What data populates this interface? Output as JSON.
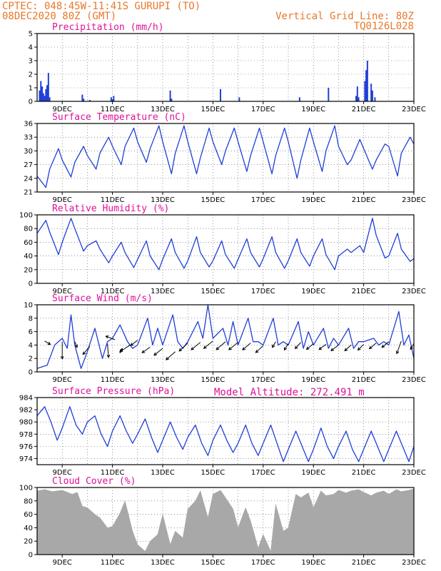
{
  "header": {
    "line1": "CPTEC:   048:45W-11:41S   GURUPI (TO)",
    "line2": "08DEC2020 80Z (GMT)",
    "grid_note": "Vertical Grid Line: 80Z",
    "model_code": "TQ0126L028",
    "altitude_note": "Model Altitude: 272.491 m"
  },
  "colors": {
    "header": "#e8782a",
    "panel_title": "#e0109a",
    "series": "#1f3fd6",
    "cloud": "#a8a8a8",
    "wind_arrow": "#000000",
    "grid": "#555555"
  },
  "chart_data": [
    {
      "type": "bar",
      "title": "Precipitation (mm/h)",
      "ylim": [
        0,
        5
      ],
      "y_ticks": [
        "0",
        "1",
        "2",
        "3",
        "4",
        "5"
      ],
      "x_tick_labels": [
        "9DEC",
        "11DEC",
        "13DEC",
        "15DEC",
        "17DEC",
        "19DEC",
        "21DEC",
        "23DEC"
      ],
      "x_unit": "day_offset_from_08DEC_00Z",
      "series": [
        {
          "x": [
            0.1,
            0.15,
            0.2,
            0.25,
            0.3,
            0.35,
            0.4,
            0.45,
            0.5,
            1.8,
            1.85,
            2.1,
            2.95,
            3.0,
            3.05,
            5.3,
            5.35,
            7.3,
            8.05,
            10.45,
            11.6,
            12.7,
            12.75,
            12.8,
            13.05,
            13.1,
            13.15,
            13.3,
            13.35,
            13.45
          ],
          "values": [
            0.8,
            1.5,
            1.1,
            0.6,
            0.4,
            0.9,
            1.2,
            2.1,
            0.3,
            0.5,
            0.2,
            0.1,
            0.3,
            0.15,
            0.4,
            0.8,
            0.2,
            0.9,
            0.3,
            0.3,
            1.0,
            0.4,
            1.1,
            0.3,
            1.5,
            2.3,
            3.0,
            1.3,
            0.8,
            0.3
          ]
        }
      ]
    },
    {
      "type": "line",
      "title": "Surface Temperature (nC)",
      "ylim": [
        21,
        36
      ],
      "y_ticks": [
        "21",
        "24",
        "27",
        "30",
        "33",
        "36"
      ],
      "x_tick_labels": [
        "9DEC",
        "11DEC",
        "13DEC",
        "15DEC",
        "17DEC",
        "19DEC",
        "21DEC",
        "23DEC"
      ],
      "series": [
        {
          "x": [
            0,
            0.35,
            0.5,
            0.85,
            1.0,
            1.35,
            1.5,
            1.85,
            2.0,
            2.35,
            2.5,
            2.85,
            3.0,
            3.35,
            3.5,
            3.85,
            4.0,
            4.35,
            4.5,
            4.85,
            5.0,
            5.35,
            5.5,
            5.85,
            6.0,
            6.35,
            6.5,
            6.85,
            7.0,
            7.35,
            7.5,
            7.85,
            8.0,
            8.35,
            8.5,
            8.85,
            9.0,
            9.35,
            9.5,
            9.85,
            10.0,
            10.35,
            10.5,
            10.85,
            11.0,
            11.35,
            11.5,
            11.85,
            12.0,
            12.35,
            12.5,
            12.85,
            13.0,
            13.35,
            13.5,
            13.85,
            14.0,
            14.35,
            14.5,
            14.85,
            15.0
          ],
          "values": [
            24.5,
            22,
            26,
            30.5,
            28,
            24.3,
            27.5,
            31,
            29,
            26,
            29.5,
            33,
            31,
            27,
            31,
            35,
            32,
            27.5,
            30.5,
            35.5,
            32,
            25,
            29.5,
            35.5,
            32,
            25,
            28.5,
            35,
            32,
            27,
            30,
            35,
            32,
            25.5,
            29,
            35,
            32,
            25,
            29,
            35,
            32,
            24,
            28,
            35,
            32,
            25.5,
            30,
            35.5,
            31,
            27,
            28,
            32.5,
            30.5,
            26,
            28,
            31.5,
            31,
            24.5,
            29.5,
            33,
            31.5
          ]
        }
      ]
    },
    {
      "type": "line",
      "title": "Relative Humidity (%)",
      "ylim": [
        0,
        100
      ],
      "y_ticks": [
        "0",
        "20",
        "40",
        "60",
        "80",
        "100"
      ],
      "x_tick_labels": [
        "9DEC",
        "11DEC",
        "13DEC",
        "15DEC",
        "17DEC",
        "19DEC",
        "21DEC",
        "23DEC"
      ],
      "series": [
        {
          "x": [
            0,
            0.35,
            0.5,
            0.85,
            1.0,
            1.35,
            1.5,
            1.85,
            2.0,
            2.35,
            2.5,
            2.85,
            3.0,
            3.35,
            3.5,
            3.85,
            4.0,
            4.35,
            4.5,
            4.85,
            5.0,
            5.35,
            5.5,
            5.85,
            6.0,
            6.35,
            6.5,
            6.85,
            7.0,
            7.35,
            7.5,
            7.85,
            8.0,
            8.35,
            8.5,
            8.85,
            9.0,
            9.35,
            9.5,
            9.85,
            10.0,
            10.35,
            10.5,
            10.85,
            11.0,
            11.35,
            11.5,
            11.85,
            12.0,
            12.35,
            12.5,
            12.85,
            13.0,
            13.35,
            13.5,
            13.85,
            14.0,
            14.35,
            14.5,
            14.85,
            15.0
          ],
          "values": [
            73,
            92,
            75,
            42,
            60,
            95,
            80,
            47,
            55,
            62,
            50,
            30,
            40,
            60,
            45,
            23,
            35,
            62,
            40,
            20,
            35,
            65,
            45,
            22,
            33,
            68,
            45,
            24,
            33,
            62,
            42,
            22,
            35,
            65,
            45,
            24,
            36,
            68,
            45,
            22,
            33,
            65,
            45,
            25,
            40,
            65,
            42,
            20,
            40,
            50,
            45,
            55,
            45,
            95,
            70,
            37,
            40,
            73,
            50,
            32,
            36
          ]
        }
      ]
    },
    {
      "type": "line",
      "title": "Surface Wind (m/s)",
      "ylim": [
        0,
        10
      ],
      "y_ticks": [
        "0",
        "2",
        "4",
        "6",
        "8",
        "10"
      ],
      "x_tick_labels": [
        "9DEC",
        "11DEC",
        "13DEC",
        "15DEC",
        "17DEC",
        "19DEC",
        "21DEC",
        "23DEC"
      ],
      "series": [
        {
          "x": [
            0,
            0.4,
            0.7,
            1.0,
            1.2,
            1.35,
            1.5,
            1.75,
            2.0,
            2.3,
            2.6,
            2.8,
            3.0,
            3.3,
            3.6,
            3.8,
            4.0,
            4.4,
            4.6,
            4.8,
            5.0,
            5.4,
            5.6,
            5.8,
            6.0,
            6.4,
            6.6,
            6.8,
            7.0,
            7.4,
            7.6,
            7.8,
            8.0,
            8.4,
            8.6,
            8.8,
            9.0,
            9.4,
            9.6,
            9.8,
            10.0,
            10.4,
            10.6,
            10.8,
            11.0,
            11.4,
            11.6,
            11.8,
            12.0,
            12.4,
            12.6,
            12.8,
            13.0,
            13.4,
            13.6,
            13.8,
            14.0,
            14.4,
            14.6,
            14.8,
            15.0
          ],
          "values": [
            0.5,
            1.0,
            4.0,
            5.0,
            3.5,
            8.5,
            4.0,
            0.5,
            3.0,
            6.5,
            2.0,
            4.5,
            5.0,
            7.0,
            4.5,
            3.5,
            4.0,
            8.0,
            4.0,
            6.5,
            4.0,
            8.5,
            4.5,
            3.5,
            4.5,
            7.5,
            5.0,
            10.0,
            5.0,
            6.5,
            4.0,
            7.5,
            4.0,
            8.0,
            4.5,
            4.5,
            4.0,
            8.0,
            4.0,
            4.5,
            4.0,
            7.5,
            3.5,
            6.0,
            4.0,
            6.5,
            3.5,
            5.0,
            4.0,
            6.5,
            3.5,
            4.5,
            4.5,
            5.0,
            4.0,
            4.5,
            4.0,
            9.0,
            4.0,
            5.5,
            2.0
          ]
        }
      ],
      "wind_arrows": [
        {
          "x": 0.3,
          "y": 4.6,
          "u": 1.0,
          "v": -0.6
        },
        {
          "x": 1.0,
          "y": 4.5,
          "u": 0.0,
          "v": -3.0
        },
        {
          "x": 1.5,
          "y": 4.5,
          "u": 0.4,
          "v": -1.0
        },
        {
          "x": 2.1,
          "y": 3.8,
          "u": -1.2,
          "v": -1.4
        },
        {
          "x": 2.8,
          "y": 4.2,
          "u": 0.2,
          "v": -2.4
        },
        {
          "x": 3.1,
          "y": 4.8,
          "u": -1.6,
          "v": 0.6
        },
        {
          "x": 3.3,
          "y": 2.8,
          "u": 0.4,
          "v": 0.8
        },
        {
          "x": 3.7,
          "y": 4.0,
          "u": -1.8,
          "v": -1.2
        },
        {
          "x": 4.0,
          "y": 4.7,
          "u": -1.2,
          "v": -0.9
        },
        {
          "x": 4.5,
          "y": 3.7,
          "u": -1.4,
          "v": -1.0
        },
        {
          "x": 5.0,
          "y": 3.5,
          "u": -1.5,
          "v": -1.2
        },
        {
          "x": 5.5,
          "y": 3.0,
          "u": -1.6,
          "v": -1.4
        },
        {
          "x": 6.0,
          "y": 4.3,
          "u": -1.5,
          "v": -1.4
        },
        {
          "x": 6.5,
          "y": 4.4,
          "u": -1.6,
          "v": -1.3
        },
        {
          "x": 7.0,
          "y": 4.6,
          "u": -1.6,
          "v": -1.3
        },
        {
          "x": 7.5,
          "y": 4.5,
          "u": -1.6,
          "v": -1.4
        },
        {
          "x": 8.0,
          "y": 4.4,
          "u": -1.6,
          "v": -1.3
        },
        {
          "x": 8.5,
          "y": 4.3,
          "u": -1.4,
          "v": -1.2
        },
        {
          "x": 9.0,
          "y": 3.9,
          "u": -1.3,
          "v": -1.2
        },
        {
          "x": 9.5,
          "y": 4.5,
          "u": -0.6,
          "v": -1.0
        },
        {
          "x": 10.0,
          "y": 4.2,
          "u": -0.7,
          "v": -1.1
        },
        {
          "x": 10.5,
          "y": 4.4,
          "u": -1.0,
          "v": -1.1
        },
        {
          "x": 11.0,
          "y": 4.2,
          "u": -1.2,
          "v": -1.0
        },
        {
          "x": 11.5,
          "y": 4.1,
          "u": -1.2,
          "v": -0.9
        },
        {
          "x": 12.0,
          "y": 4.0,
          "u": -1.3,
          "v": -1.0
        },
        {
          "x": 12.5,
          "y": 4.0,
          "u": -1.1,
          "v": -1.0
        },
        {
          "x": 13.0,
          "y": 4.1,
          "u": -1.0,
          "v": -1.0
        },
        {
          "x": 13.5,
          "y": 4.3,
          "u": -1.2,
          "v": -1.0
        },
        {
          "x": 14.0,
          "y": 4.5,
          "u": -1.2,
          "v": -1.0
        },
        {
          "x": 14.5,
          "y": 4.6,
          "u": -0.8,
          "v": -2.2
        },
        {
          "x": 15.0,
          "y": 4.2,
          "u": -0.6,
          "v": -1.0
        }
      ]
    },
    {
      "type": "line",
      "title": "Surface Pressure (hPa)",
      "ylim": [
        973,
        984
      ],
      "y_ticks": [
        "974",
        "976",
        "978",
        "980",
        "982",
        "984"
      ],
      "x_tick_labels": [
        "9DEC",
        "11DEC",
        "13DEC",
        "15DEC",
        "17DEC",
        "19DEC",
        "21DEC",
        "23DEC"
      ],
      "series": [
        {
          "x": [
            0,
            0.3,
            0.55,
            0.8,
            1.0,
            1.3,
            1.55,
            1.8,
            2.0,
            2.3,
            2.55,
            2.8,
            3.0,
            3.3,
            3.55,
            3.8,
            4.0,
            4.3,
            4.55,
            4.8,
            5.0,
            5.3,
            5.55,
            5.8,
            6.0,
            6.3,
            6.55,
            6.8,
            7.0,
            7.3,
            7.55,
            7.8,
            8.0,
            8.3,
            8.55,
            8.8,
            9.0,
            9.3,
            9.55,
            9.8,
            10.0,
            10.3,
            10.55,
            10.8,
            11.0,
            11.3,
            11.55,
            11.8,
            12.0,
            12.3,
            12.55,
            12.8,
            13.0,
            13.3,
            13.55,
            13.8,
            14.0,
            14.3,
            14.55,
            14.8,
            15.0
          ],
          "values": [
            981,
            982.5,
            980,
            977,
            979,
            982.5,
            979.5,
            978,
            980,
            981,
            978,
            976,
            978.5,
            981,
            978.5,
            976.5,
            978,
            980.5,
            977.5,
            975,
            977,
            980,
            977.5,
            975.5,
            977.5,
            979.5,
            976.5,
            974.5,
            977,
            979.5,
            977,
            975,
            976.5,
            979.5,
            976.5,
            974.5,
            976.5,
            979.5,
            976.5,
            973.5,
            975.5,
            978.5,
            976,
            973.5,
            975.5,
            979,
            976,
            974,
            976,
            978.5,
            975.5,
            973.5,
            975.5,
            978.5,
            976,
            973.5,
            975.5,
            978.5,
            976,
            973.5,
            976
          ]
        }
      ]
    },
    {
      "type": "area",
      "title": "Cloud Cover (%)",
      "ylim": [
        0,
        100
      ],
      "y_ticks": [
        "0",
        "20",
        "40",
        "60",
        "80",
        "100"
      ],
      "x_tick_labels": [
        "9DEC",
        "11DEC",
        "13DEC",
        "15DEC",
        "17DEC",
        "19DEC",
        "21DEC",
        "23DEC"
      ],
      "series": [
        {
          "x": [
            0,
            0.3,
            0.6,
            1.0,
            1.4,
            1.6,
            1.8,
            2.0,
            2.3,
            2.5,
            2.8,
            3.0,
            3.3,
            3.5,
            3.8,
            4.0,
            4.3,
            4.5,
            4.8,
            5.0,
            5.3,
            5.5,
            5.8,
            6.0,
            6.3,
            6.5,
            6.8,
            7.0,
            7.3,
            7.5,
            7.8,
            8.0,
            8.3,
            8.5,
            8.8,
            9.0,
            9.3,
            9.5,
            9.8,
            10.0,
            10.3,
            10.5,
            10.8,
            11.0,
            11.3,
            11.5,
            11.8,
            12.0,
            12.3,
            12.5,
            12.8,
            13.0,
            13.3,
            13.5,
            13.8,
            14.0,
            14.3,
            14.5,
            14.8,
            15.0
          ],
          "values": [
            95,
            97,
            94,
            96,
            90,
            93,
            72,
            70,
            60,
            55,
            40,
            42,
            62,
            80,
            35,
            15,
            5,
            20,
            30,
            60,
            15,
            35,
            25,
            68,
            80,
            95,
            55,
            90,
            96,
            85,
            68,
            40,
            70,
            50,
            10,
            30,
            5,
            75,
            35,
            40,
            90,
            85,
            92,
            70,
            95,
            88,
            90,
            96,
            92,
            95,
            97,
            93,
            88,
            92,
            95,
            90,
            97,
            94,
            96,
            98
          ]
        }
      ]
    }
  ]
}
